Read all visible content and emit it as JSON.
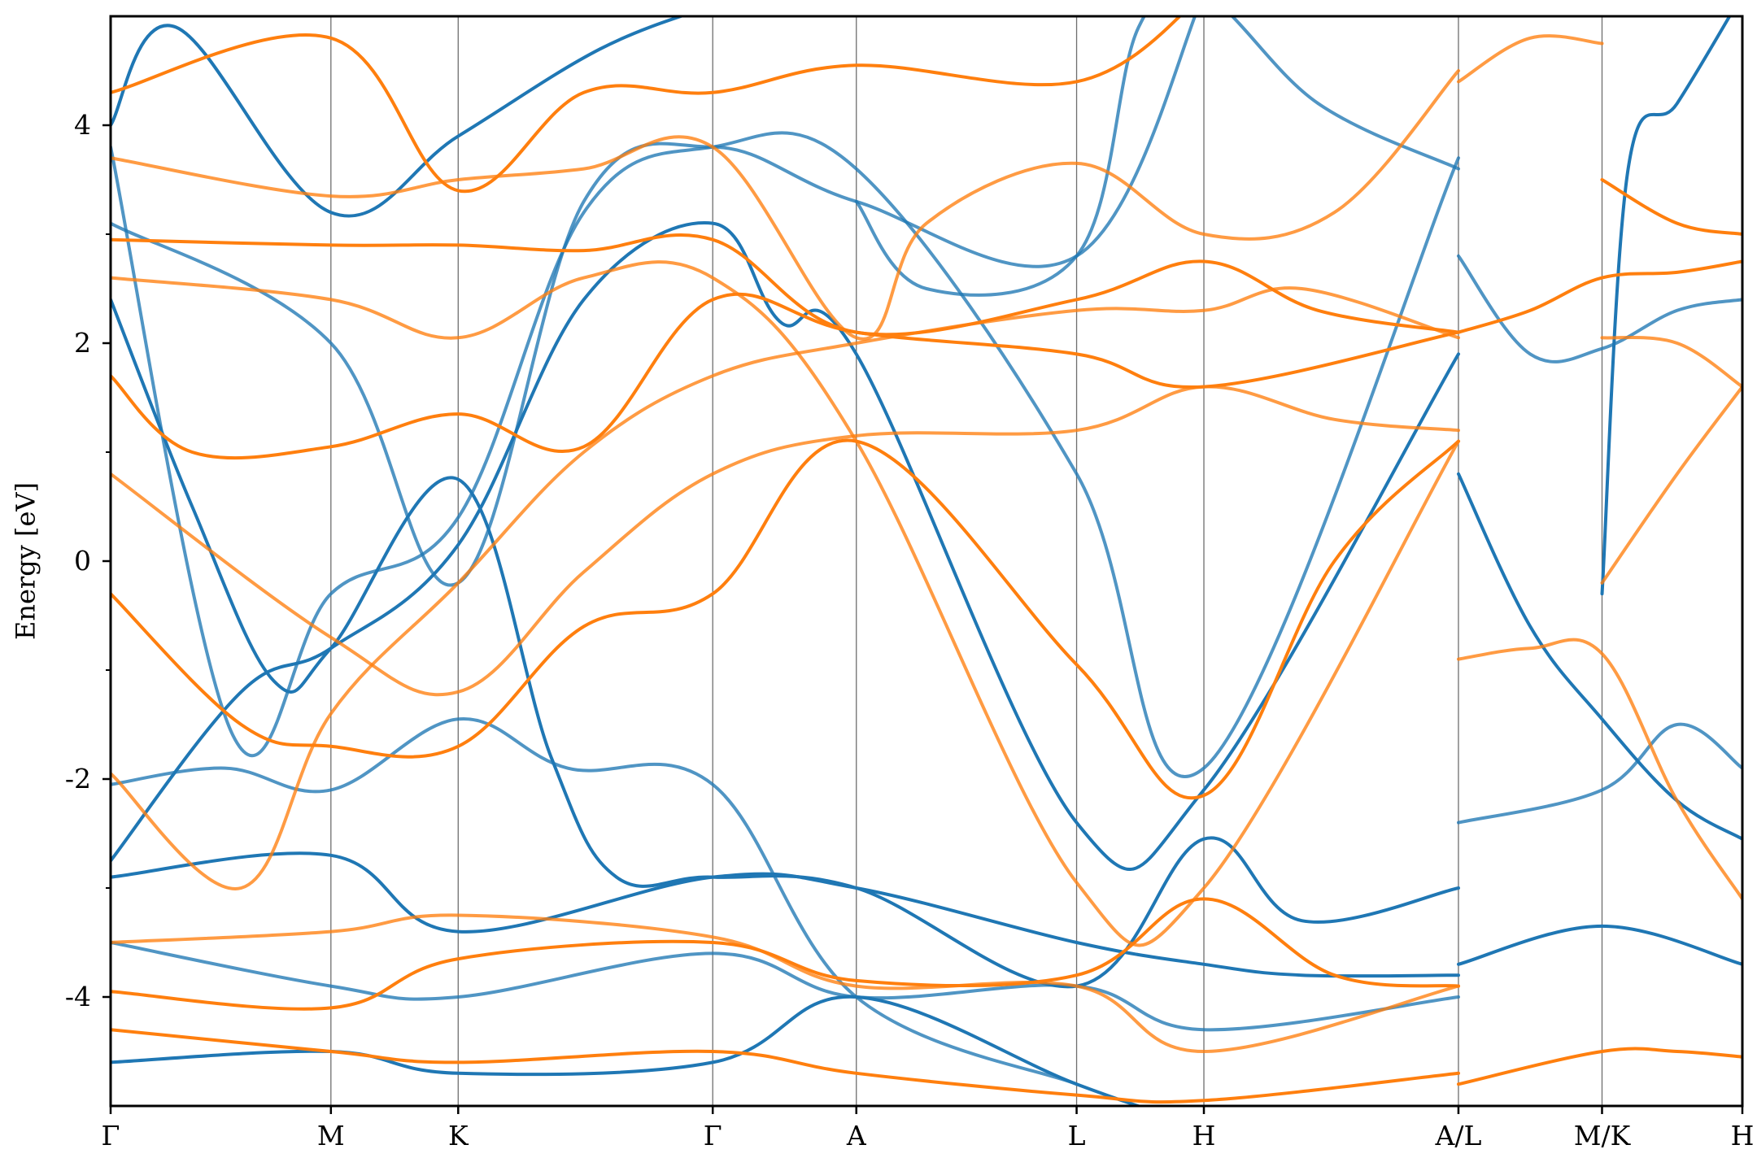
{
  "chart_data": {
    "type": "line",
    "ylabel": "Energy [eV]",
    "ylim": [
      -5,
      5
    ],
    "y_ticks": [
      "-4",
      "-2",
      "0",
      "2",
      "4"
    ],
    "grid": false,
    "k_path_labels": [
      "Γ",
      "M",
      "K",
      "Γ",
      "A",
      "L",
      "H",
      "A/L",
      "M/K",
      "H"
    ],
    "k_path_positions": [
      0,
      1.35,
      2.13,
      3.69,
      4.57,
      5.92,
      6.7,
      8.26,
      9.14,
      10.0
    ],
    "colors": {
      "spin_up": "#1f77b4",
      "spin_down": "#ff7f0e"
    },
    "series": [
      {
        "channel": "spin_up",
        "bands": [
          [
            [
              0,
              -4.6
            ],
            [
              1.35,
              -4.5
            ],
            [
              2.13,
              -4.7
            ],
            [
              3.69,
              -4.6
            ],
            [
              4.57,
              -4.0
            ],
            [
              5.92,
              -4.8
            ],
            [
              6.7,
              -5.2
            ]
          ],
          [
            [
              0,
              -3.5
            ],
            [
              1.35,
              -3.9
            ],
            [
              2.13,
              -4.0
            ],
            [
              3.69,
              -3.6
            ],
            [
              4.57,
              -4.0
            ],
            [
              5.92,
              -3.9
            ],
            [
              6.7,
              -4.3
            ],
            [
              8.26,
              -4.0
            ]
          ],
          [
            [
              0,
              -2.9
            ],
            [
              1.35,
              -2.7
            ],
            [
              2.13,
              -3.4
            ],
            [
              3.69,
              -2.9
            ],
            [
              4.57,
              -3.0
            ],
            [
              5.92,
              -3.5
            ],
            [
              6.7,
              -3.7
            ],
            [
              7.3,
              -3.8
            ],
            [
              8.26,
              -3.8
            ]
          ],
          [
            [
              0,
              -2.05
            ],
            [
              0.7,
              -1.9
            ],
            [
              1.35,
              -2.1
            ],
            [
              2.13,
              -1.45
            ],
            [
              2.8,
              -1.9
            ],
            [
              3.69,
              -2.05
            ],
            [
              4.57,
              -4.0
            ],
            [
              5.92,
              -4.8
            ]
          ],
          [
            [
              0,
              -2.75
            ],
            [
              0.8,
              -1.2
            ],
            [
              1.35,
              -0.8
            ],
            [
              2.13,
              0.15
            ],
            [
              2.9,
              2.4
            ],
            [
              3.69,
              3.1
            ],
            [
              4.1,
              2.2
            ],
            [
              4.57,
              1.9
            ],
            [
              5.92,
              -2.4
            ],
            [
              6.7,
              -2.1
            ],
            [
              8.26,
              1.9
            ]
          ],
          [
            [
              0,
              3.8
            ],
            [
              0.75,
              -1.6
            ],
            [
              1.35,
              -0.3
            ],
            [
              2.13,
              0.4
            ],
            [
              2.9,
              3.2
            ],
            [
              3.69,
              3.8
            ],
            [
              4.57,
              3.6
            ],
            [
              5.92,
              0.8
            ],
            [
              6.7,
              -1.9
            ],
            [
              8.26,
              3.7
            ]
          ],
          [
            [
              0,
              2.4
            ],
            [
              0.5,
              0.5
            ],
            [
              1.0,
              -1.1
            ],
            [
              1.35,
              -0.8
            ],
            [
              2.13,
              0.75
            ],
            [
              2.7,
              -1.8
            ],
            [
              3.1,
              -2.9
            ],
            [
              3.69,
              -2.9
            ],
            [
              4.57,
              -3.0
            ],
            [
              5.92,
              -3.9
            ],
            [
              6.7,
              -2.55
            ],
            [
              7.3,
              -3.3
            ],
            [
              8.26,
              -3.0
            ]
          ],
          [
            [
              0,
              3.1
            ],
            [
              1.35,
              2.0
            ],
            [
              2.13,
              -0.2
            ],
            [
              2.9,
              3.3
            ],
            [
              3.69,
              3.8
            ],
            [
              4.57,
              3.3
            ],
            [
              5.92,
              2.8
            ],
            [
              6.7,
              5.2
            ]
          ],
          [
            [
              0,
              4.0
            ],
            [
              0.4,
              4.9
            ],
            [
              1.35,
              3.2
            ],
            [
              2.13,
              3.9
            ],
            [
              3.0,
              4.7
            ],
            [
              3.69,
              5.1
            ]
          ],
          [
            [
              4.57,
              3.3
            ],
            [
              5.0,
              2.5
            ],
            [
              5.92,
              2.8
            ],
            [
              6.3,
              4.9
            ],
            [
              6.7,
              5.2
            ],
            [
              7.4,
              4.2
            ],
            [
              8.26,
              3.6
            ]
          ],
          [
            [
              8.26,
              0.8
            ],
            [
              8.7,
              -0.6
            ],
            [
              9.14,
              -1.45
            ],
            [
              9.6,
              -2.2
            ],
            [
              10.0,
              -2.55
            ]
          ],
          [
            [
              8.26,
              2.8
            ],
            [
              8.7,
              1.9
            ],
            [
              9.14,
              1.95
            ],
            [
              9.6,
              2.3
            ],
            [
              10.0,
              2.4
            ]
          ],
          [
            [
              8.26,
              -3.7
            ],
            [
              9.14,
              -3.35
            ],
            [
              10.0,
              -3.7
            ]
          ],
          [
            [
              8.26,
              -2.4
            ],
            [
              9.14,
              -2.1
            ],
            [
              9.6,
              -1.5
            ],
            [
              10.0,
              -1.9
            ]
          ],
          [
            [
              9.14,
              -0.3
            ],
            [
              9.3,
              3.6
            ],
            [
              9.6,
              4.2
            ],
            [
              10.0,
              5.2
            ]
          ]
        ]
      },
      {
        "channel": "spin_down",
        "bands": [
          [
            [
              0,
              -4.3
            ],
            [
              1.35,
              -4.5
            ],
            [
              2.13,
              -4.6
            ],
            [
              3.69,
              -4.5
            ],
            [
              4.57,
              -4.7
            ],
            [
              5.92,
              -4.9
            ],
            [
              6.7,
              -4.95
            ],
            [
              8.26,
              -4.7
            ]
          ],
          [
            [
              0,
              -3.5
            ],
            [
              1.35,
              -3.4
            ],
            [
              2.13,
              -3.25
            ],
            [
              3.69,
              -3.45
            ],
            [
              4.57,
              -3.9
            ],
            [
              5.92,
              -3.9
            ],
            [
              6.7,
              -4.5
            ],
            [
              8.26,
              -3.9
            ]
          ],
          [
            [
              0,
              -3.95
            ],
            [
              1.35,
              -4.1
            ],
            [
              2.13,
              -3.65
            ],
            [
              3.69,
              -3.5
            ],
            [
              4.57,
              -3.85
            ],
            [
              5.92,
              -3.8
            ],
            [
              6.7,
              -3.1
            ],
            [
              7.5,
              -3.8
            ],
            [
              8.26,
              -3.9
            ]
          ],
          [
            [
              0,
              -1.95
            ],
            [
              0.8,
              -3.0
            ],
            [
              1.35,
              -1.4
            ],
            [
              2.13,
              -0.2
            ],
            [
              2.9,
              1.0
            ],
            [
              3.69,
              1.7
            ],
            [
              4.57,
              2.0
            ],
            [
              5.92,
              2.3
            ],
            [
              6.7,
              2.3
            ],
            [
              7.3,
              2.5
            ],
            [
              8.26,
              2.05
            ]
          ],
          [
            [
              0,
              -0.3
            ],
            [
              0.8,
              -1.5
            ],
            [
              1.35,
              -1.7
            ],
            [
              2.13,
              -1.7
            ],
            [
              2.9,
              -0.6
            ],
            [
              3.69,
              -0.3
            ],
            [
              4.57,
              1.1
            ],
            [
              5.92,
              -0.95
            ],
            [
              6.7,
              -2.15
            ],
            [
              7.5,
              0.0
            ],
            [
              8.26,
              1.1
            ]
          ],
          [
            [
              0,
              0.8
            ],
            [
              1.35,
              -0.7
            ],
            [
              2.13,
              -1.2
            ],
            [
              2.9,
              -0.1
            ],
            [
              3.69,
              0.8
            ],
            [
              4.57,
              1.15
            ],
            [
              5.92,
              1.2
            ],
            [
              6.7,
              1.6
            ],
            [
              7.5,
              1.3
            ],
            [
              8.26,
              1.2
            ]
          ],
          [
            [
              0,
              1.7
            ],
            [
              0.5,
              1.0
            ],
            [
              1.35,
              1.05
            ],
            [
              2.13,
              1.35
            ],
            [
              2.9,
              1.05
            ],
            [
              3.69,
              2.4
            ],
            [
              4.57,
              2.1
            ],
            [
              5.92,
              1.9
            ],
            [
              6.7,
              1.6
            ],
            [
              8.26,
              2.1
            ]
          ],
          [
            [
              0,
              2.6
            ],
            [
              1.35,
              2.4
            ],
            [
              2.13,
              2.05
            ],
            [
              2.9,
              2.6
            ],
            [
              3.69,
              2.6
            ],
            [
              4.57,
              1.1
            ],
            [
              5.92,
              -2.95
            ],
            [
              6.7,
              -3.0
            ],
            [
              8.26,
              1.1
            ]
          ],
          [
            [
              0,
              2.95
            ],
            [
              1.35,
              2.9
            ],
            [
              2.13,
              2.9
            ],
            [
              2.9,
              2.85
            ],
            [
              3.69,
              2.95
            ],
            [
              4.57,
              2.1
            ],
            [
              5.92,
              2.4
            ],
            [
              6.7,
              2.75
            ],
            [
              7.4,
              2.3
            ],
            [
              8.26,
              2.1
            ]
          ],
          [
            [
              0,
              3.7
            ],
            [
              1.35,
              3.35
            ],
            [
              2.13,
              3.5
            ],
            [
              2.9,
              3.6
            ],
            [
              3.69,
              3.8
            ],
            [
              4.57,
              2.05
            ],
            [
              5.0,
              3.1
            ],
            [
              5.92,
              3.65
            ],
            [
              6.7,
              3.0
            ],
            [
              7.5,
              3.2
            ],
            [
              8.26,
              4.5
            ]
          ],
          [
            [
              0,
              4.3
            ],
            [
              1.35,
              4.8
            ],
            [
              2.13,
              3.4
            ],
            [
              2.9,
              4.3
            ],
            [
              3.69,
              4.3
            ],
            [
              4.57,
              4.55
            ],
            [
              5.92,
              4.4
            ],
            [
              6.7,
              5.2
            ]
          ],
          [
            [
              8.26,
              -0.9
            ],
            [
              8.7,
              -0.8
            ],
            [
              9.14,
              -0.85
            ],
            [
              9.6,
              -2.2
            ],
            [
              10.0,
              -3.1
            ]
          ],
          [
            [
              8.26,
              2.1
            ],
            [
              8.7,
              2.3
            ],
            [
              9.14,
              2.6
            ],
            [
              9.6,
              2.65
            ],
            [
              10.0,
              2.75
            ]
          ],
          [
            [
              8.26,
              4.4
            ],
            [
              8.7,
              4.8
            ],
            [
              9.14,
              4.75
            ]
          ],
          [
            [
              8.26,
              -4.8
            ],
            [
              9.14,
              -4.5
            ],
            [
              9.6,
              -4.5
            ],
            [
              10.0,
              -4.55
            ]
          ],
          [
            [
              9.14,
              -0.2
            ],
            [
              9.6,
              0.8
            ],
            [
              10.0,
              1.6
            ]
          ],
          [
            [
              9.14,
              3.5
            ],
            [
              9.6,
              3.1
            ],
            [
              10.0,
              3.0
            ]
          ],
          [
            [
              9.14,
              2.05
            ],
            [
              9.6,
              2.0
            ],
            [
              10.0,
              1.6
            ]
          ]
        ]
      }
    ]
  }
}
